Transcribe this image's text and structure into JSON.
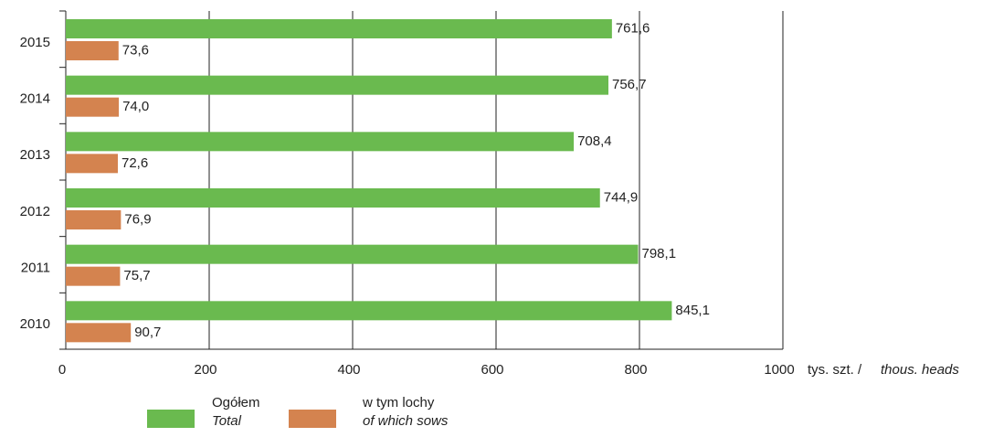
{
  "chart_data": {
    "type": "bar",
    "orientation": "horizontal",
    "categories": [
      "2015",
      "2014",
      "2013",
      "2012",
      "2011",
      "2010"
    ],
    "series": [
      {
        "name": "Ogółem",
        "subname": "Total",
        "color": "#6aba4f",
        "values": [
          761.6,
          756.7,
          708.4,
          744.9,
          798.1,
          845.1
        ],
        "value_labels": [
          "761,6",
          "756,7",
          "708,4",
          "744,9",
          "798,1",
          "845,1"
        ]
      },
      {
        "name": "w tym lochy",
        "subname": "of which sows",
        "color": "#d4834f",
        "values": [
          73.6,
          74.0,
          72.6,
          76.9,
          75.7,
          90.7
        ],
        "value_labels": [
          "73,6",
          "74,0",
          "72,6",
          "76,9",
          "75,7",
          "90,7"
        ]
      }
    ],
    "xlim": [
      0,
      1000
    ],
    "xticks": [
      0,
      200,
      400,
      600,
      800,
      1000
    ],
    "xlabel": "tys. szt. / ",
    "xlabel_italic": "thous. heads",
    "grid": true,
    "legend": "bottom"
  }
}
